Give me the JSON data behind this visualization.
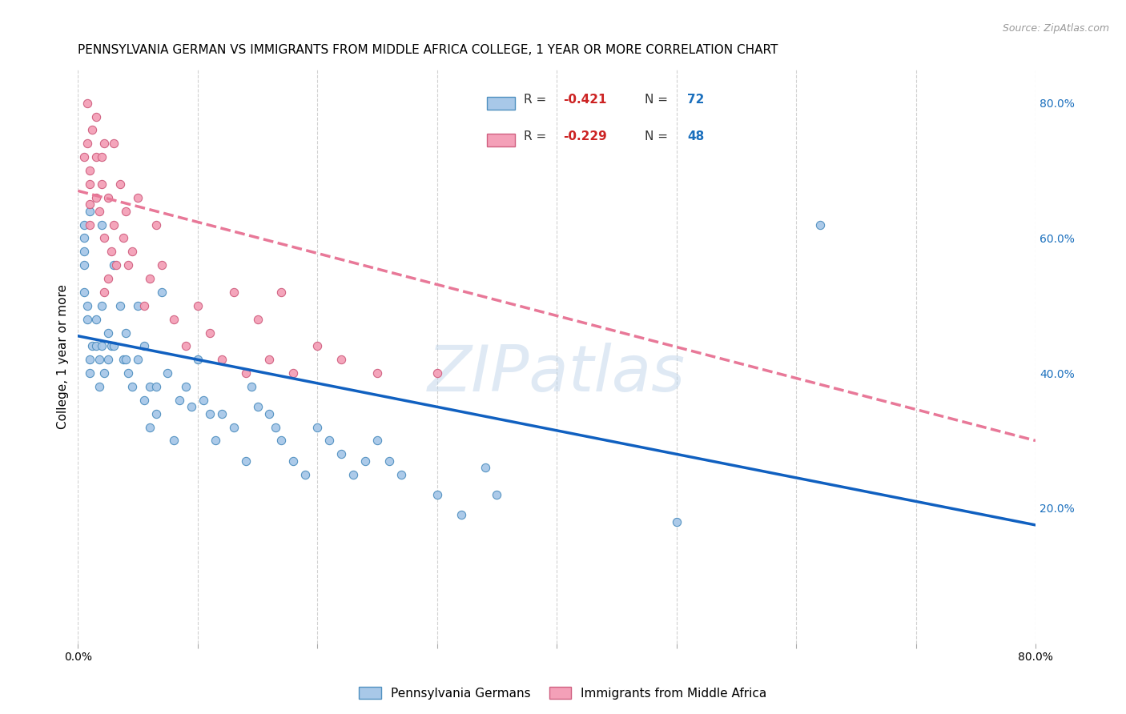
{
  "title": "PENNSYLVANIA GERMAN VS IMMIGRANTS FROM MIDDLE AFRICA COLLEGE, 1 YEAR OR MORE CORRELATION CHART",
  "source": "Source: ZipAtlas.com",
  "ylabel": "College, 1 year or more",
  "xlim": [
    0.0,
    0.8
  ],
  "ylim": [
    0.0,
    0.85
  ],
  "x_ticks": [
    0.0,
    0.1,
    0.2,
    0.3,
    0.4,
    0.5,
    0.6,
    0.7,
    0.8
  ],
  "x_tick_labels": [
    "0.0%",
    "",
    "",
    "",
    "",
    "",
    "",
    "",
    "80.0%"
  ],
  "y_ticks_right": [
    0.2,
    0.4,
    0.6,
    0.8
  ],
  "y_tick_labels_right": [
    "20.0%",
    "40.0%",
    "60.0%",
    "80.0%"
  ],
  "blue_R": "-0.421",
  "blue_N": "72",
  "pink_R": "-0.229",
  "pink_N": "48",
  "blue_color": "#a8c8e8",
  "pink_color": "#f4a0b8",
  "blue_line_color": "#1060c0",
  "pink_line_color": "#e87898",
  "blue_edge_color": "#5090c0",
  "pink_edge_color": "#d06080",
  "legend_label_blue": "Pennsylvania Germans",
  "legend_label_pink": "Immigrants from Middle Africa",
  "blue_scatter_x": [
    0.005,
    0.005,
    0.005,
    0.005,
    0.005,
    0.008,
    0.008,
    0.01,
    0.01,
    0.01,
    0.012,
    0.015,
    0.015,
    0.018,
    0.018,
    0.02,
    0.02,
    0.02,
    0.022,
    0.025,
    0.025,
    0.028,
    0.03,
    0.03,
    0.035,
    0.038,
    0.04,
    0.04,
    0.042,
    0.045,
    0.05,
    0.05,
    0.055,
    0.055,
    0.06,
    0.06,
    0.065,
    0.065,
    0.07,
    0.075,
    0.08,
    0.085,
    0.09,
    0.095,
    0.1,
    0.105,
    0.11,
    0.115,
    0.12,
    0.13,
    0.14,
    0.145,
    0.15,
    0.16,
    0.165,
    0.17,
    0.18,
    0.19,
    0.2,
    0.21,
    0.22,
    0.23,
    0.24,
    0.25,
    0.26,
    0.27,
    0.3,
    0.32,
    0.34,
    0.35,
    0.5,
    0.62
  ],
  "blue_scatter_y": [
    0.62,
    0.6,
    0.58,
    0.56,
    0.52,
    0.5,
    0.48,
    0.64,
    0.42,
    0.4,
    0.44,
    0.48,
    0.44,
    0.42,
    0.38,
    0.62,
    0.5,
    0.44,
    0.4,
    0.46,
    0.42,
    0.44,
    0.56,
    0.44,
    0.5,
    0.42,
    0.46,
    0.42,
    0.4,
    0.38,
    0.5,
    0.42,
    0.44,
    0.36,
    0.38,
    0.32,
    0.38,
    0.34,
    0.52,
    0.4,
    0.3,
    0.36,
    0.38,
    0.35,
    0.42,
    0.36,
    0.34,
    0.3,
    0.34,
    0.32,
    0.27,
    0.38,
    0.35,
    0.34,
    0.32,
    0.3,
    0.27,
    0.25,
    0.32,
    0.3,
    0.28,
    0.25,
    0.27,
    0.3,
    0.27,
    0.25,
    0.22,
    0.19,
    0.26,
    0.22,
    0.18,
    0.62
  ],
  "pink_scatter_x": [
    0.005,
    0.008,
    0.008,
    0.01,
    0.01,
    0.01,
    0.01,
    0.012,
    0.015,
    0.015,
    0.015,
    0.018,
    0.02,
    0.02,
    0.022,
    0.022,
    0.022,
    0.025,
    0.025,
    0.028,
    0.03,
    0.03,
    0.032,
    0.035,
    0.038,
    0.04,
    0.042,
    0.045,
    0.05,
    0.055,
    0.06,
    0.065,
    0.07,
    0.08,
    0.09,
    0.1,
    0.11,
    0.12,
    0.13,
    0.14,
    0.15,
    0.16,
    0.17,
    0.18,
    0.2,
    0.22,
    0.25,
    0.3
  ],
  "pink_scatter_y": [
    0.72,
    0.8,
    0.74,
    0.7,
    0.68,
    0.65,
    0.62,
    0.76,
    0.78,
    0.72,
    0.66,
    0.64,
    0.72,
    0.68,
    0.74,
    0.6,
    0.52,
    0.66,
    0.54,
    0.58,
    0.74,
    0.62,
    0.56,
    0.68,
    0.6,
    0.64,
    0.56,
    0.58,
    0.66,
    0.5,
    0.54,
    0.62,
    0.56,
    0.48,
    0.44,
    0.5,
    0.46,
    0.42,
    0.52,
    0.4,
    0.48,
    0.42,
    0.52,
    0.4,
    0.44,
    0.42,
    0.4,
    0.4
  ],
  "blue_line_x0": 0.0,
  "blue_line_x1": 0.8,
  "blue_line_y0": 0.455,
  "blue_line_y1": 0.175,
  "pink_line_x0": 0.0,
  "pink_line_x1": 0.8,
  "pink_line_y0": 0.67,
  "pink_line_y1": 0.3,
  "watermark": "ZIPatlas",
  "background_color": "#ffffff",
  "grid_color": "#cccccc",
  "title_fontsize": 11,
  "label_fontsize": 11,
  "tick_fontsize": 10,
  "marker_size": 55
}
